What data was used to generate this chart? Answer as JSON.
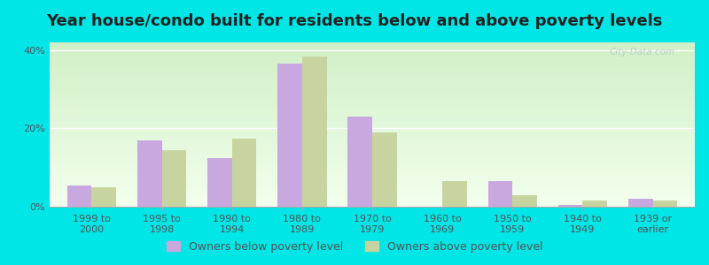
{
  "title": "Year house/condo built for residents below and above poverty levels",
  "categories": [
    "1999 to\n2000",
    "1995 to\n1998",
    "1990 to\n1994",
    "1980 to\n1989",
    "1970 to\n1979",
    "1960 to\n1969",
    "1950 to\n1959",
    "1940 to\n1949",
    "1939 or\nearlier"
  ],
  "below_poverty": [
    5.5,
    17.0,
    12.5,
    36.5,
    23.0,
    0.0,
    6.5,
    0.5,
    2.0
  ],
  "above_poverty": [
    5.0,
    14.5,
    17.5,
    38.5,
    19.0,
    6.5,
    3.0,
    1.5,
    1.5
  ],
  "below_color": "#c9a8e0",
  "above_color": "#c8d4a0",
  "outer_bg": "#00e5e5",
  "ylim": [
    0,
    42
  ],
  "yticks": [
    0,
    20,
    40
  ],
  "ytick_labels": [
    "0%",
    "20%",
    "40%"
  ],
  "legend_below": "Owners below poverty level",
  "legend_above": "Owners above poverty level",
  "bar_width": 0.35,
  "title_fontsize": 13,
  "tick_fontsize": 8,
  "legend_fontsize": 9
}
